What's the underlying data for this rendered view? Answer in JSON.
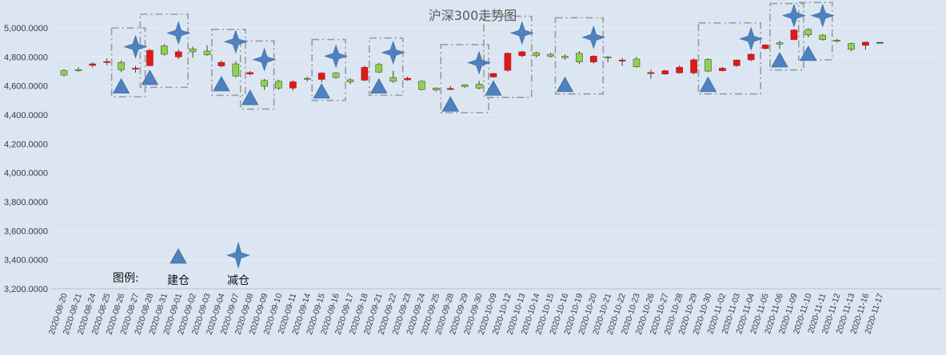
{
  "chart_data": {
    "type": "candlestick",
    "title": "沪深300走势图",
    "xlabel": "",
    "ylabel": "",
    "ylim": [
      3200,
      5100
    ],
    "yticks": [
      5000,
      4800,
      4600,
      4400,
      4200,
      4000,
      3800,
      3600,
      3400,
      3200
    ],
    "ytick_labels": [
      "5,000.0000",
      "4,800.0000",
      "4,600.0000",
      "4,400.0000",
      "4,200.0000",
      "4,000.0000",
      "3,800.0000",
      "3,600.0000",
      "3,400.0000",
      "3,200.0000"
    ],
    "grid": "horizontal",
    "rising_color": "#e0191a",
    "falling_color": "#92d050",
    "marker_color": "#4f81bd",
    "categories": [
      "2020-08-20",
      "2020-08-21",
      "2020-08-24",
      "2020-08-25",
      "2020-08-26",
      "2020-08-27",
      "2020-08-28",
      "2020-08-31",
      "2020-09-01",
      "2020-09-02",
      "2020-09-03",
      "2020-09-04",
      "2020-09-07",
      "2020-09-08",
      "2020-09-09",
      "2020-09-10",
      "2020-09-11",
      "2020-09-14",
      "2020-09-15",
      "2020-09-16",
      "2020-09-17",
      "2020-09-18",
      "2020-09-21",
      "2020-09-22",
      "2020-09-23",
      "2020-09-24",
      "2020-09-25",
      "2020-09-28",
      "2020-09-29",
      "2020-09-30",
      "2020-10-09",
      "2020-10-12",
      "2020-10-13",
      "2020-10-14",
      "2020-10-15",
      "2020-10-16",
      "2020-10-19",
      "2020-10-20",
      "2020-10-21",
      "2020-10-22",
      "2020-10-23",
      "2020-10-26",
      "2020-10-27",
      "2020-10-28",
      "2020-10-29",
      "2020-10-30",
      "2020-11-02",
      "2020-11-03",
      "2020-11-04",
      "2020-11-05",
      "2020-11-06",
      "2020-11-09",
      "2020-11-10",
      "2020-11-11",
      "2020-11-12",
      "2020-11-13",
      "2020-11-16",
      "2020-11-17"
    ],
    "candles": [
      {
        "o": 4705,
        "c": 4675,
        "h": 4715,
        "l": 4665
      },
      {
        "o": 4712,
        "c": 4710,
        "h": 4728,
        "l": 4698
      },
      {
        "o": 4742,
        "c": 4752,
        "h": 4762,
        "l": 4728
      },
      {
        "o": 4762,
        "c": 4768,
        "h": 4790,
        "l": 4742
      },
      {
        "o": 4762,
        "c": 4712,
        "h": 4775,
        "l": 4695
      },
      {
        "o": 4718,
        "c": 4722,
        "h": 4738,
        "l": 4692
      },
      {
        "o": 4740,
        "c": 4845,
        "h": 4855,
        "l": 4735
      },
      {
        "o": 4875,
        "c": 4818,
        "h": 4888,
        "l": 4810
      },
      {
        "o": 4800,
        "c": 4835,
        "h": 4852,
        "l": 4785
      },
      {
        "o": 4855,
        "c": 4835,
        "h": 4870,
        "l": 4795
      },
      {
        "o": 4840,
        "c": 4815,
        "h": 4880,
        "l": 4808
      },
      {
        "o": 4738,
        "c": 4762,
        "h": 4775,
        "l": 4728
      },
      {
        "o": 4752,
        "c": 4668,
        "h": 4770,
        "l": 4658
      },
      {
        "o": 4682,
        "c": 4692,
        "h": 4702,
        "l": 4672
      },
      {
        "o": 4638,
        "c": 4598,
        "h": 4648,
        "l": 4572
      },
      {
        "o": 4632,
        "c": 4585,
        "h": 4642,
        "l": 4572
      },
      {
        "o": 4585,
        "c": 4628,
        "h": 4640,
        "l": 4568
      },
      {
        "o": 4652,
        "c": 4648,
        "h": 4662,
        "l": 4632
      },
      {
        "o": 4645,
        "c": 4688,
        "h": 4695,
        "l": 4625
      },
      {
        "o": 4688,
        "c": 4658,
        "h": 4695,
        "l": 4650
      },
      {
        "o": 4642,
        "c": 4628,
        "h": 4652,
        "l": 4612
      },
      {
        "o": 4640,
        "c": 4728,
        "h": 4738,
        "l": 4632
      },
      {
        "o": 4748,
        "c": 4695,
        "h": 4760,
        "l": 4688
      },
      {
        "o": 4658,
        "c": 4632,
        "h": 4705,
        "l": 4622
      },
      {
        "o": 4642,
        "c": 4652,
        "h": 4665,
        "l": 4635
      },
      {
        "o": 4632,
        "c": 4575,
        "h": 4638,
        "l": 4570
      },
      {
        "o": 4585,
        "c": 4572,
        "h": 4590,
        "l": 4562
      },
      {
        "o": 4580,
        "c": 4582,
        "h": 4600,
        "l": 4572
      },
      {
        "o": 4608,
        "c": 4595,
        "h": 4612,
        "l": 4585
      },
      {
        "o": 4612,
        "c": 4585,
        "h": 4635,
        "l": 4575
      },
      {
        "o": 4662,
        "c": 4685,
        "h": 4690,
        "l": 4655
      },
      {
        "o": 4708,
        "c": 4825,
        "h": 4830,
        "l": 4698
      },
      {
        "o": 4808,
        "c": 4835,
        "h": 4842,
        "l": 4798
      },
      {
        "o": 4828,
        "c": 4808,
        "h": 4838,
        "l": 4795
      },
      {
        "o": 4818,
        "c": 4805,
        "h": 4828,
        "l": 4795
      },
      {
        "o": 4805,
        "c": 4795,
        "h": 4818,
        "l": 4780
      },
      {
        "o": 4825,
        "c": 4765,
        "h": 4840,
        "l": 4752
      },
      {
        "o": 4765,
        "c": 4805,
        "h": 4812,
        "l": 4755
      },
      {
        "o": 4800,
        "c": 4795,
        "h": 4808,
        "l": 4762
      },
      {
        "o": 4775,
        "c": 4778,
        "h": 4792,
        "l": 4738
      },
      {
        "o": 4785,
        "c": 4732,
        "h": 4800,
        "l": 4725
      },
      {
        "o": 4688,
        "c": 4692,
        "h": 4712,
        "l": 4650
      },
      {
        "o": 4682,
        "c": 4705,
        "h": 4710,
        "l": 4678
      },
      {
        "o": 4690,
        "c": 4728,
        "h": 4742,
        "l": 4685
      },
      {
        "o": 4690,
        "c": 4780,
        "h": 4790,
        "l": 4680
      },
      {
        "o": 4782,
        "c": 4702,
        "h": 4790,
        "l": 4695
      },
      {
        "o": 4705,
        "c": 4722,
        "h": 4730,
        "l": 4700
      },
      {
        "o": 4740,
        "c": 4778,
        "h": 4782,
        "l": 4732
      },
      {
        "o": 4780,
        "c": 4818,
        "h": 4825,
        "l": 4770
      },
      {
        "o": 4858,
        "c": 4882,
        "h": 4888,
        "l": 4850
      },
      {
        "o": 4898,
        "c": 4888,
        "h": 4912,
        "l": 4855
      },
      {
        "o": 4920,
        "c": 4985,
        "h": 4992,
        "l": 4915
      },
      {
        "o": 4990,
        "c": 4952,
        "h": 4998,
        "l": 4935
      },
      {
        "o": 4950,
        "c": 4920,
        "h": 4958,
        "l": 4912
      },
      {
        "o": 4915,
        "c": 4912,
        "h": 4925,
        "l": 4900
      },
      {
        "o": 4892,
        "c": 4852,
        "h": 4900,
        "l": 4838
      },
      {
        "o": 4880,
        "c": 4902,
        "h": 4906,
        "l": 4850
      },
      {
        "o": 4900,
        "c": 4900,
        "h": 4900,
        "l": 4900
      }
    ],
    "build_markers": [
      {
        "date": "2020-08-26",
        "value": 4600
      },
      {
        "date": "2020-08-28",
        "value": 4658
      },
      {
        "date": "2020-09-04",
        "value": 4615
      },
      {
        "date": "2020-09-08",
        "value": 4520
      },
      {
        "date": "2020-09-15",
        "value": 4565
      },
      {
        "date": "2020-09-21",
        "value": 4600
      },
      {
        "date": "2020-09-28",
        "value": 4475
      },
      {
        "date": "2020-10-09",
        "value": 4585
      },
      {
        "date": "2020-10-16",
        "value": 4610
      },
      {
        "date": "2020-10-30",
        "value": 4610
      },
      {
        "date": "2020-11-06",
        "value": 4780
      },
      {
        "date": "2020-11-10",
        "value": 4825
      }
    ],
    "reduce_markers": [
      {
        "date": "2020-08-27",
        "value": 4870
      },
      {
        "date": "2020-09-01",
        "value": 4965
      },
      {
        "date": "2020-09-07",
        "value": 4905
      },
      {
        "date": "2020-09-09",
        "value": 4782
      },
      {
        "date": "2020-09-16",
        "value": 4805
      },
      {
        "date": "2020-09-22",
        "value": 4830
      },
      {
        "date": "2020-09-30",
        "value": 4760
      },
      {
        "date": "2020-10-13",
        "value": 4965
      },
      {
        "date": "2020-10-20",
        "value": 4935
      },
      {
        "date": "2020-11-04",
        "value": 4925
      },
      {
        "date": "2020-11-09",
        "value": 5085
      },
      {
        "date": "2020-11-11",
        "value": 5085
      }
    ],
    "annotation_boxes": [
      {
        "from": "2020-08-26",
        "to": "2020-08-27",
        "ymin": 4525,
        "ymax": 5000
      },
      {
        "from": "2020-08-28",
        "to": "2020-09-01",
        "ymin": 4590,
        "ymax": 5095
      },
      {
        "from": "2020-09-04",
        "to": "2020-09-07",
        "ymin": 4535,
        "ymax": 4990
      },
      {
        "from": "2020-09-08",
        "to": "2020-09-09",
        "ymin": 4440,
        "ymax": 4910
      },
      {
        "from": "2020-09-15",
        "to": "2020-09-16",
        "ymin": 4500,
        "ymax": 4920
      },
      {
        "from": "2020-09-21",
        "to": "2020-09-22",
        "ymin": 4535,
        "ymax": 4930
      },
      {
        "from": "2020-09-28",
        "to": "2020-09-30",
        "ymin": 4415,
        "ymax": 4885
      },
      {
        "from": "2020-10-09",
        "to": "2020-10-13",
        "ymin": 4520,
        "ymax": 5080
      },
      {
        "from": "2020-10-16",
        "to": "2020-10-20",
        "ymin": 4545,
        "ymax": 5070
      },
      {
        "from": "2020-10-30",
        "to": "2020-11-04",
        "ymin": 4545,
        "ymax": 5035
      },
      {
        "from": "2020-11-06",
        "to": "2020-11-09",
        "ymin": 4710,
        "ymax": 5168
      },
      {
        "from": "2020-11-10",
        "to": "2020-11-11",
        "ymin": 4780,
        "ymax": 5175
      }
    ],
    "legend": {
      "title": "图例:",
      "items": [
        {
          "label": "建仓",
          "marker": "triangle"
        },
        {
          "label": "减仓",
          "marker": "star"
        }
      ]
    }
  }
}
